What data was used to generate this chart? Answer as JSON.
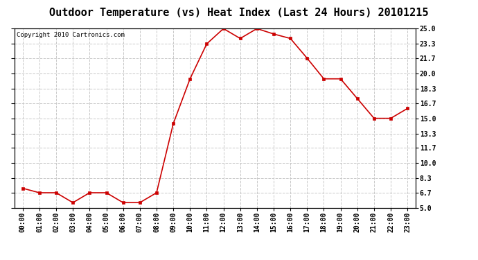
{
  "title": "Outdoor Temperature (vs) Heat Index (Last 24 Hours) 20101215",
  "copyright_text": "Copyright 2010 Cartronics.com",
  "x_labels": [
    "00:00",
    "01:00",
    "02:00",
    "03:00",
    "04:00",
    "05:00",
    "06:00",
    "07:00",
    "08:00",
    "09:00",
    "10:00",
    "11:00",
    "12:00",
    "13:00",
    "14:00",
    "15:00",
    "16:00",
    "17:00",
    "18:00",
    "19:00",
    "20:00",
    "21:00",
    "22:00",
    "23:00"
  ],
  "y_values": [
    7.2,
    6.7,
    6.7,
    5.6,
    6.7,
    6.7,
    5.6,
    5.6,
    6.7,
    14.4,
    19.4,
    23.3,
    25.0,
    23.9,
    25.0,
    24.4,
    23.9,
    21.7,
    19.4,
    19.4,
    17.2,
    15.0,
    15.0,
    16.1
  ],
  "line_color": "#cc0000",
  "marker": "s",
  "marker_size": 3,
  "marker_color": "#cc0000",
  "ylim": [
    5.0,
    25.0
  ],
  "yticks": [
    5.0,
    6.7,
    8.3,
    10.0,
    11.7,
    13.3,
    15.0,
    16.7,
    18.3,
    20.0,
    21.7,
    23.3,
    25.0
  ],
  "background_color": "#ffffff",
  "grid_color": "#c8c8c8",
  "title_fontsize": 11,
  "tick_fontsize": 7,
  "copyright_fontsize": 6.5
}
